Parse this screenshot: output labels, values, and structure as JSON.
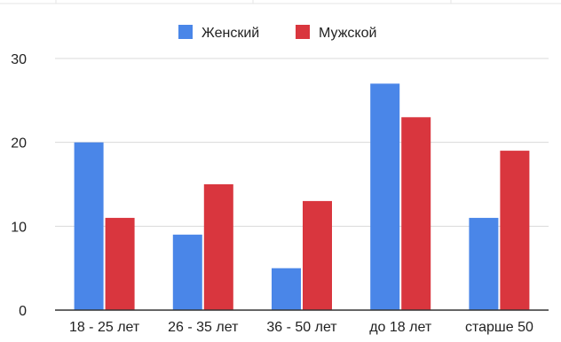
{
  "chart_data": {
    "type": "bar",
    "title": "",
    "xlabel": "",
    "ylabel": "",
    "categories": [
      "18 - 25 лет",
      "26 - 35 лет",
      "36 - 50 лет",
      "до 18 лет",
      "старше 50"
    ],
    "series": [
      {
        "name": "Женский",
        "color": "#4a86e8",
        "values": [
          20,
          9,
          5,
          27,
          11
        ]
      },
      {
        "name": "Мужской",
        "color": "#d9363e",
        "values": [
          11,
          15,
          13,
          23,
          19
        ]
      }
    ],
    "ylim": [
      0,
      30
    ],
    "yticks": [
      0,
      10,
      20,
      30
    ],
    "grid": true,
    "legend_position": "top"
  }
}
